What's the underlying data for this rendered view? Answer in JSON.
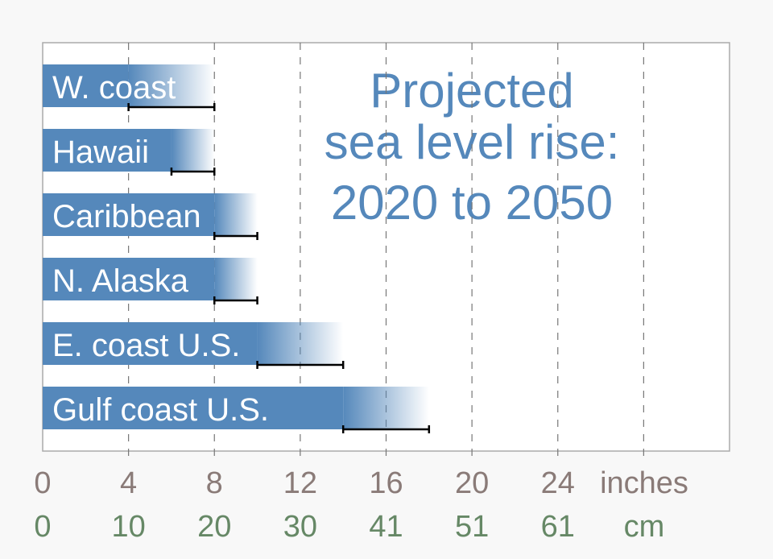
{
  "chart_data": {
    "type": "bar",
    "orientation": "horizontal",
    "title_lines": [
      "Projected",
      "sea level rise:",
      "2020 to 2050"
    ],
    "categories": [
      "W. coast",
      "Hawaii",
      "Caribbean",
      "N. Alaska",
      "E. coast U.S.",
      "Gulf coast U.S."
    ],
    "series": [
      {
        "low": [
          4,
          6,
          8,
          8,
          10,
          14
        ],
        "high": [
          8,
          8,
          10,
          10,
          14,
          18
        ]
      }
    ],
    "xlim": [
      0,
      32
    ],
    "x_ticks_inches": [
      "0",
      "4",
      "8",
      "12",
      "16",
      "20",
      "24"
    ],
    "x_unit_inches": "inches",
    "x_ticks_cm": [
      "0",
      "10",
      "20",
      "30",
      "41",
      "51",
      "61"
    ],
    "x_unit_cm": "cm",
    "grid": "vertical dashed",
    "colors": {
      "bar": "#5588bb",
      "title": "#5588bb",
      "inches_text": "#8a7b78",
      "cm_text": "#668866",
      "error_bar": "#000000"
    }
  }
}
